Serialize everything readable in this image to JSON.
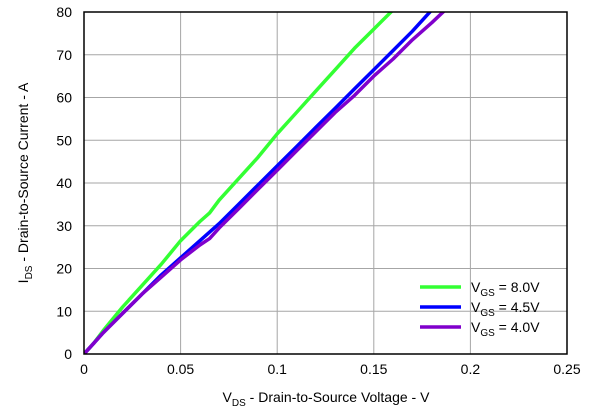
{
  "chart_data": {
    "type": "line",
    "xlabel": {
      "main": "V",
      "sub": "DS",
      "rest": " - Drain-to-Source Voltage - V"
    },
    "ylabel": {
      "main": "I",
      "sub": "DS",
      "rest": " - Drain-to-Source Current - A"
    },
    "xlim": [
      0,
      0.25
    ],
    "ylim": [
      0,
      80
    ],
    "x_ticks": [
      0,
      0.05,
      0.1,
      0.15,
      0.2,
      0.25
    ],
    "x_tick_labels": [
      "0",
      "0.05",
      "0.1",
      "0.15",
      "0.2",
      "0.25"
    ],
    "y_ticks": [
      0,
      10,
      20,
      30,
      40,
      50,
      60,
      70,
      80
    ],
    "y_tick_labels": [
      "0",
      "10",
      "20",
      "30",
      "40",
      "50",
      "60",
      "70",
      "80"
    ],
    "grid": true,
    "legend_position": "bottom-right",
    "series": [
      {
        "name": {
          "main": "V",
          "sub": "GS",
          "rest": " = 8.0V"
        },
        "color": "#33ff33",
        "x": [
          0,
          0.005,
          0.01,
          0.02,
          0.03,
          0.04,
          0.05,
          0.06,
          0.065,
          0.07,
          0.08,
          0.09,
          0.1,
          0.11,
          0.12,
          0.13,
          0.14,
          0.15,
          0.16
        ],
        "y": [
          0,
          2.5,
          5.5,
          11,
          16,
          21,
          26.5,
          31,
          33,
          36,
          41,
          46,
          51.5,
          56.5,
          61.5,
          66.5,
          71.5,
          76,
          80.5
        ]
      },
      {
        "name": {
          "main": "V",
          "sub": "GS",
          "rest": " = 4.5V"
        },
        "color": "#0000ff",
        "x": [
          0,
          0.005,
          0.01,
          0.02,
          0.03,
          0.04,
          0.05,
          0.06,
          0.07,
          0.08,
          0.09,
          0.1,
          0.11,
          0.12,
          0.13,
          0.14,
          0.15,
          0.16,
          0.17,
          0.18
        ],
        "y": [
          0,
          2.5,
          5,
          9.5,
          14,
          18.5,
          22.5,
          26.5,
          30.5,
          35,
          39.5,
          44,
          48.5,
          53,
          57.5,
          62,
          66.5,
          71,
          75.5,
          80.5
        ]
      },
      {
        "name": {
          "main": "V",
          "sub": "GS",
          "rest": " = 4.0V"
        },
        "color": "#8000cc",
        "x": [
          0,
          0.005,
          0.01,
          0.02,
          0.03,
          0.04,
          0.05,
          0.06,
          0.065,
          0.07,
          0.08,
          0.09,
          0.1,
          0.11,
          0.12,
          0.13,
          0.14,
          0.15,
          0.16,
          0.17,
          0.18,
          0.187
        ],
        "y": [
          0,
          2.5,
          5,
          9.5,
          14,
          18,
          22,
          25.5,
          27,
          29.5,
          34,
          38.5,
          43,
          47.5,
          52,
          56.5,
          60.5,
          65,
          69,
          73.5,
          77.5,
          80.5
        ]
      }
    ]
  }
}
